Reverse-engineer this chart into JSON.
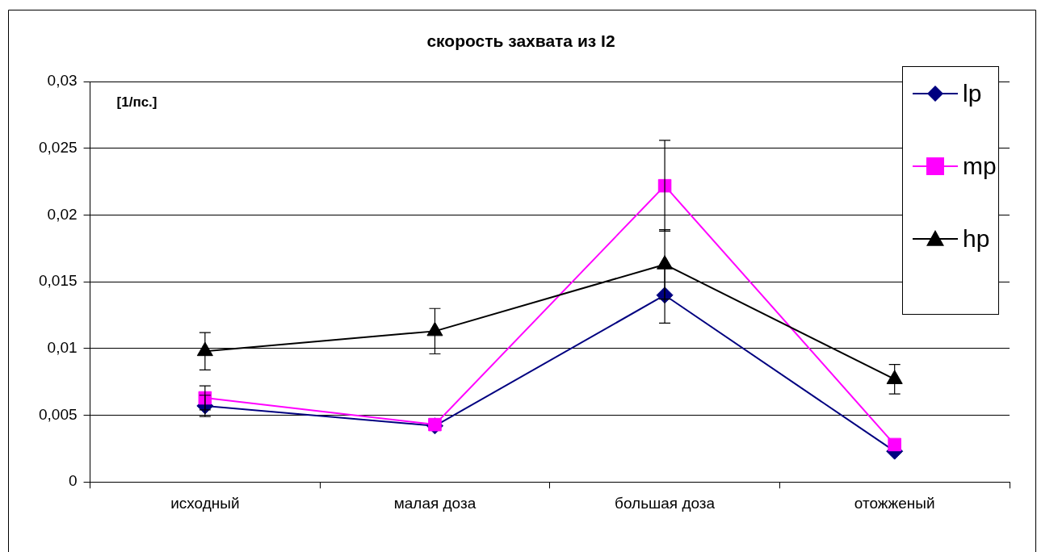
{
  "chart_data": {
    "type": "line",
    "title": "скорость захвата из I2",
    "annotations": [
      "[1/пс.]"
    ],
    "categories": [
      "исходный",
      "малая доза",
      "большая доза",
      "отожженый"
    ],
    "ylim": [
      0,
      0.03
    ],
    "yticks": [
      {
        "value": 0,
        "label": "0"
      },
      {
        "value": 0.005,
        "label": "0,005"
      },
      {
        "value": 0.01,
        "label": "0,01"
      },
      {
        "value": 0.015,
        "label": "0,015"
      },
      {
        "value": 0.02,
        "label": "0,02"
      },
      {
        "value": 0.025,
        "label": "0,025"
      },
      {
        "value": 0.03,
        "label": "0,03"
      }
    ],
    "grid": "y",
    "legend": "right",
    "series": [
      {
        "name": "lp",
        "color": "#000080",
        "marker": "diamond",
        "values": [
          0.0057,
          0.0042,
          0.014,
          0.0023
        ],
        "errors": [
          0.0008,
          null,
          0.0021,
          null
        ]
      },
      {
        "name": "mp",
        "color": "#ff00ff",
        "marker": "square",
        "values": [
          0.0063,
          0.0043,
          0.0222,
          0.0028
        ],
        "errors": [
          0.0009,
          null,
          0.0034,
          null
        ]
      },
      {
        "name": "hp",
        "color": "#000000",
        "marker": "triangle",
        "values": [
          0.0098,
          0.0113,
          0.0163,
          0.0077
        ],
        "errors": [
          0.0014,
          0.0017,
          0.0026,
          0.0011
        ]
      }
    ]
  }
}
